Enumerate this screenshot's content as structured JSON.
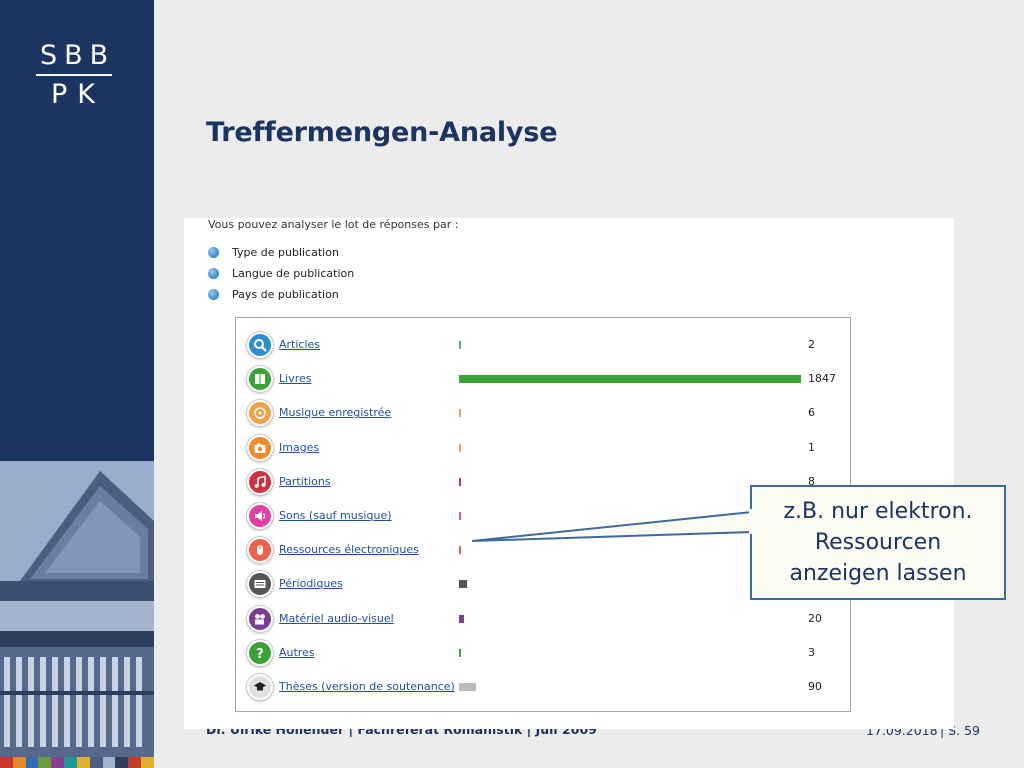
{
  "logo": {
    "top": "SBB",
    "bottom": "PK"
  },
  "slide_title": "Treffermengen-Analyse",
  "footer": {
    "author": "Dr. Ulrike Hollender | Fachreferat Romanistik | Juli 2009",
    "date": "17.09.2018",
    "page": "| S. 59"
  },
  "panel": {
    "intro": "Vous pouvez analyser le lot de réponses par :",
    "options": [
      "Type de publication",
      "Langue de publication",
      "Pays de publication"
    ]
  },
  "results": [
    {
      "label": "Articles",
      "count": "2",
      "value": 2,
      "color": "#4aa0d8",
      "icon": "magnifier-icon",
      "icon_bg": "#2d8fd0"
    },
    {
      "label": "Livres",
      "count": "1847",
      "value": 1847,
      "color": "#3aa335",
      "icon": "book-icon",
      "icon_bg": "#3aa335"
    },
    {
      "label": "Musique enregistrée",
      "count": "6",
      "value": 6,
      "color": "#f0a64a",
      "icon": "disc-icon",
      "icon_bg": "#f5a042"
    },
    {
      "label": "Images",
      "count": "1",
      "value": 1,
      "color": "#f0a64a",
      "icon": "camera-icon",
      "icon_bg": "#f08a2a"
    },
    {
      "label": "Partitions",
      "count": "8",
      "value": 8,
      "color": "#c8365a",
      "icon": "music-note-icon",
      "icon_bg": "#d0303f"
    },
    {
      "label": "Sons (sauf musique)",
      "count": "",
      "value": 4,
      "color": "#e0559a",
      "icon": "speaker-icon",
      "icon_bg": "#e040a0"
    },
    {
      "label": "Ressources électroniques",
      "count": "",
      "value": 5,
      "color": "#e0605a",
      "icon": "mouse-icon",
      "icon_bg": "#f0604a"
    },
    {
      "label": "Périodiques",
      "count": "",
      "value": 40,
      "color": "#555555",
      "icon": "newspaper-icon",
      "icon_bg": "#555555"
    },
    {
      "label": "Matériel audio-visuel",
      "count": "20",
      "value": 20,
      "color": "#7a3d8f",
      "icon": "projector-icon",
      "icon_bg": "#7a3d8f"
    },
    {
      "label": "Autres",
      "count": "3",
      "value": 3,
      "color": "#3aa335",
      "icon": "question-icon",
      "icon_bg": "#3aa335"
    },
    {
      "label": "Thèses (version de soutenance)",
      "count": "90",
      "value": 90,
      "color": "#bbbbbb",
      "icon": "graduation-cap-icon",
      "icon_bg": "#e0e0e0"
    }
  ],
  "callout": "z.B. nur elektron.\nRessourcen\nanzeigen lassen"
}
